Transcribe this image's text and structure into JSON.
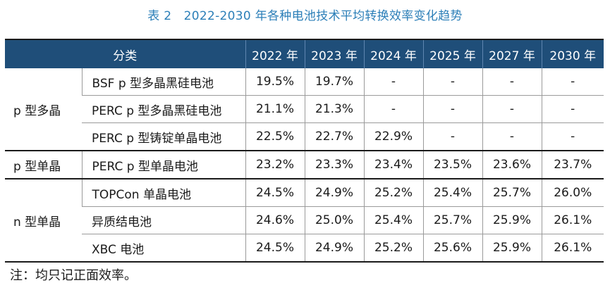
{
  "caption": "表 2　2022-2030 年各种电池技术平均转换效率变化趋势",
  "table": {
    "category_header": "分类",
    "years": [
      "2022 年",
      "2023 年",
      "2024 年",
      "2025 年",
      "2027 年",
      "2030 年"
    ],
    "groups": [
      {
        "label": "p 型多晶",
        "rows": [
          {
            "name": "BSF p 型多晶黑硅电池",
            "values": [
              "19.5%",
              "19.7%",
              "-",
              "-",
              "-",
              "-"
            ]
          },
          {
            "name": "PERC p 型多晶黑硅电池",
            "values": [
              "21.1%",
              "21.3%",
              "-",
              "-",
              "-",
              "-"
            ]
          },
          {
            "name": "PERC p 型铸锭单晶电池",
            "values": [
              "22.5%",
              "22.7%",
              "22.9%",
              "-",
              "-",
              "-"
            ]
          }
        ]
      },
      {
        "label": "p 型单晶",
        "rows": [
          {
            "name": "PERC p 型单晶电池",
            "values": [
              "23.2%",
              "23.3%",
              "23.4%",
              "23.5%",
              "23.6%",
              "23.7%"
            ]
          }
        ]
      },
      {
        "label": "n 型单晶",
        "rows": [
          {
            "name": "TOPCon 单晶电池",
            "values": [
              "24.5%",
              "24.9%",
              "25.2%",
              "25.4%",
              "25.7%",
              "26.0%"
            ]
          },
          {
            "name": "异质结电池",
            "values": [
              "24.6%",
              "25.0%",
              "25.4%",
              "25.7%",
              "25.9%",
              "26.1%"
            ]
          },
          {
            "name": "XBC 电池",
            "values": [
              "24.5%",
              "24.9%",
              "25.2%",
              "25.6%",
              "25.9%",
              "26.1%"
            ]
          }
        ]
      }
    ]
  },
  "note": "注：均只记正面效率。"
}
